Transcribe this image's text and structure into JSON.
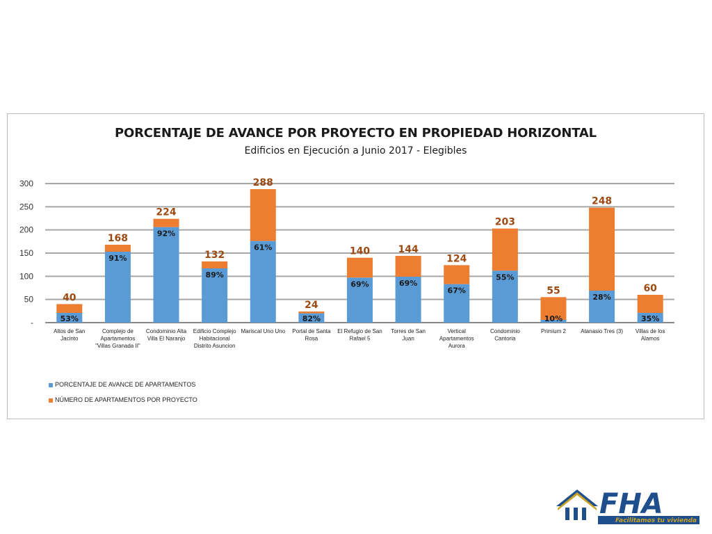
{
  "chart_data": {
    "type": "bar",
    "stacked": true,
    "title": "PORCENTAJE DE AVANCE POR PROYECTO EN PROPIEDAD HORIZONTAL",
    "subtitle": "Edificios en Ejecución a Junio 2017 - Elegibles",
    "ylim": [
      0,
      300
    ],
    "yticks": [
      "-",
      "50",
      "100",
      "150",
      "200",
      "250",
      "300"
    ],
    "ytick_values": [
      0,
      50,
      100,
      150,
      200,
      250,
      300
    ],
    "grid": true,
    "legend_position": "bottom-left",
    "categories": [
      [
        "Altos de San",
        "Jacinto"
      ],
      [
        "Complejo de",
        "Apartamentos",
        "\"Villas Granada II\""
      ],
      [
        "Condominio Alta",
        "Villa El Naranjo"
      ],
      [
        "Edificio Complejo",
        "Habitacional",
        "Distrito Asuncion"
      ],
      [
        "Mariscal Uno Uno"
      ],
      [
        "Portal de Santa",
        "Rosa"
      ],
      [
        "El Refugio de San",
        "Rafael 5"
      ],
      [
        "Torres de San",
        "Juan"
      ],
      [
        "Vertical",
        "Apartamentos",
        "Aurora"
      ],
      [
        "Condominio",
        "Cantoria"
      ],
      [
        "Primium 2"
      ],
      [
        "Atanasio Tres (3)"
      ],
      [
        "Villas de los",
        "Alamos"
      ]
    ],
    "series": [
      {
        "name": "PORCENTAJE DE AVANCE DE APARTAMENTOS",
        "color": "#5b9bd5",
        "values": [
          21,
          153,
          206,
          117,
          176,
          20,
          97,
          99,
          83,
          112,
          6,
          69,
          21
        ],
        "labels": [
          "53%",
          "91%",
          "92%",
          "89%",
          "61%",
          "82%",
          "69%",
          "69%",
          "67%",
          "55%",
          "10%",
          "28%",
          "35%"
        ]
      },
      {
        "name": "NÚMERO DE APARTAMENTOS  POR PROYECTO",
        "color": "#ed7d31",
        "totals": [
          40,
          168,
          224,
          132,
          288,
          24,
          140,
          144,
          124,
          203,
          55,
          248,
          60
        ],
        "labels": [
          "40",
          "168",
          "224",
          "132",
          "288",
          "24",
          "140",
          "144",
          "124",
          "203",
          "55",
          "248",
          "60"
        ]
      }
    ]
  },
  "logo": {
    "text": "FHA",
    "tagline": "Facilitamos tu vivienda"
  }
}
